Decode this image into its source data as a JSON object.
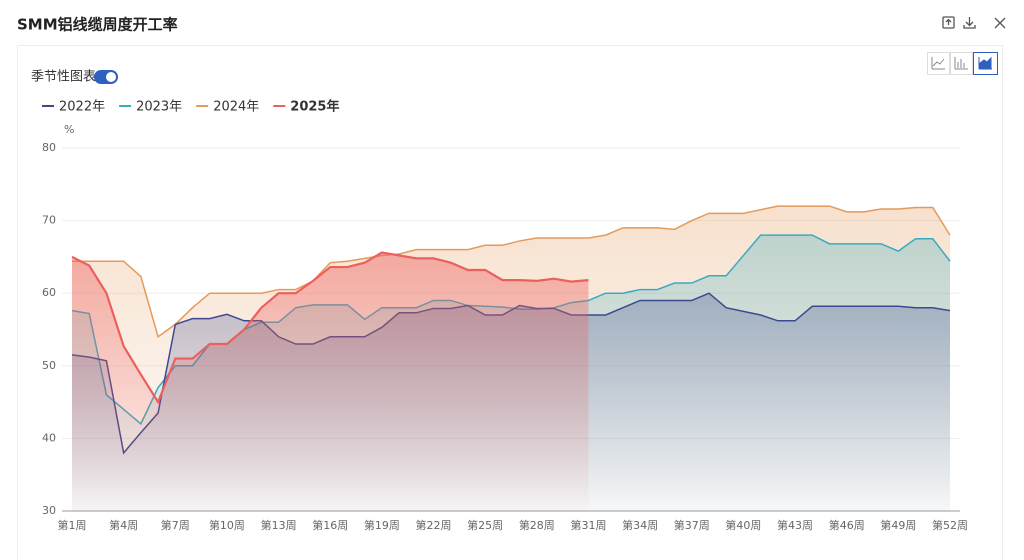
{
  "header": {
    "title": "SMM铝线缆周度开工率",
    "toggle_label": "季节性图表"
  },
  "chart_data": {
    "type": "area",
    "y_unit": "%",
    "categories": [
      "第1周",
      null,
      null,
      "第4周",
      null,
      null,
      "第7周",
      null,
      null,
      "第10周",
      null,
      null,
      "第13周",
      null,
      null,
      "第16周",
      null,
      null,
      "第19周",
      null,
      null,
      "第22周",
      null,
      null,
      "第25周",
      null,
      null,
      "第28周",
      null,
      null,
      "第31周",
      null,
      null,
      "第34周",
      null,
      null,
      "第37周",
      null,
      null,
      "第40周",
      null,
      null,
      "第43周",
      null,
      null,
      "第46周",
      null,
      null,
      "第49周",
      null,
      null,
      "第52周"
    ],
    "ylim": [
      30,
      80
    ],
    "yticks": [
      30,
      40,
      50,
      60,
      70,
      80
    ],
    "grid": true,
    "series": [
      {
        "name": "2022年",
        "color": "#3d4a8f",
        "values": [
          51.5,
          51.2,
          50.7,
          38,
          40.8,
          43.5,
          55.7,
          56.5,
          56.5,
          57.1,
          56.2,
          56.2,
          54,
          53,
          53,
          54,
          54,
          54,
          55.3,
          57.3,
          57.3,
          57.9,
          57.9,
          58.3,
          57,
          57,
          58.3,
          57.9,
          57.9,
          57,
          57,
          57,
          58,
          59,
          59,
          59,
          59,
          60,
          58,
          57.5,
          57,
          56.2,
          56.2,
          58.2,
          58.2,
          58.2,
          58.2,
          58.2,
          58.2,
          58,
          58,
          57.6
        ]
      },
      {
        "name": "2023年",
        "color": "#3aabbf",
        "values": [
          57.6,
          57.2,
          46,
          44,
          42,
          47,
          50,
          50,
          53,
          53,
          55,
          56,
          56,
          58,
          58.4,
          58.4,
          58.4,
          56.4,
          58,
          58,
          58,
          59,
          59,
          58.3,
          58.2,
          58.1,
          57.8,
          57.8,
          58,
          58.7,
          59,
          60,
          60,
          60.5,
          60.5,
          61.4,
          61.4,
          62.4,
          62.4,
          65.2,
          68,
          68,
          68,
          68,
          66.8,
          66.8,
          66.8,
          66.8,
          65.8,
          67.5,
          67.5,
          64.4
        ]
      },
      {
        "name": "2024年",
        "color": "#e59a5a",
        "values": [
          64.4,
          64.4,
          64.4,
          64.4,
          62.3,
          54,
          55.7,
          58,
          60,
          60,
          60,
          60,
          60.5,
          60.5,
          61.7,
          64.2,
          64.4,
          64.8,
          65.2,
          65.4,
          66,
          66,
          66,
          66,
          66.6,
          66.6,
          67.2,
          67.6,
          67.6,
          67.6,
          67.6,
          68,
          69,
          69,
          69,
          68.8,
          70,
          71,
          71,
          71,
          71.5,
          72,
          72,
          72,
          72,
          71.2,
          71.2,
          71.6,
          71.6,
          71.8,
          71.8,
          68
        ]
      },
      {
        "name": "2025年",
        "color": "#ec5f5f",
        "values": [
          65,
          63.8,
          60,
          52.7,
          48.8,
          45,
          51,
          51,
          53,
          53,
          55,
          58,
          60,
          60,
          61.7,
          63.6,
          63.6,
          64.2,
          65.6,
          65.2,
          64.8,
          64.8,
          64.2,
          63.2,
          63.2,
          61.8,
          61.8,
          61.7,
          62,
          61.6,
          61.8,
          null,
          null,
          null,
          null,
          null,
          null,
          null,
          null,
          null,
          null,
          null,
          null,
          null,
          null,
          null,
          null,
          null,
          null,
          null,
          null,
          null
        ]
      }
    ]
  }
}
